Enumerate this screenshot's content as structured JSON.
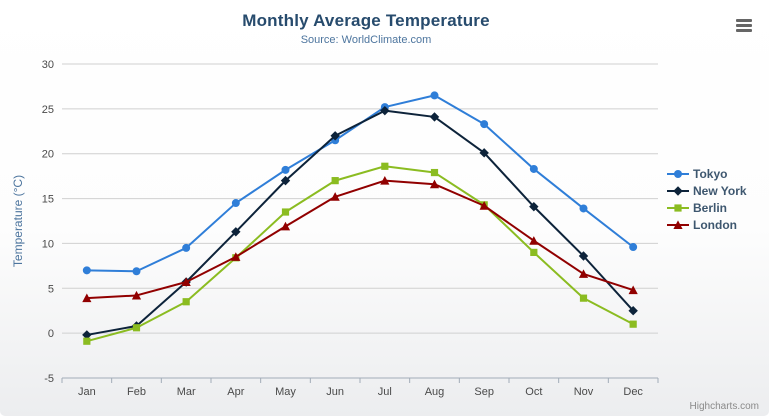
{
  "credits": "Highcharts.com",
  "chart_data": {
    "type": "line",
    "title": "Monthly Average Temperature",
    "subtitle": "Source: WorldClimate.com",
    "categories": [
      "Jan",
      "Feb",
      "Mar",
      "Apr",
      "May",
      "Jun",
      "Jul",
      "Aug",
      "Sep",
      "Oct",
      "Nov",
      "Dec"
    ],
    "series": [
      {
        "name": "Tokyo",
        "color": "#2f7ed8",
        "marker": "circle",
        "values": [
          7.0,
          6.9,
          9.5,
          14.5,
          18.2,
          21.5,
          25.2,
          26.5,
          23.3,
          18.3,
          13.9,
          9.6
        ]
      },
      {
        "name": "New York",
        "color": "#0d233a",
        "marker": "diamond",
        "values": [
          -0.2,
          0.8,
          5.7,
          11.3,
          17.0,
          22.0,
          24.8,
          24.1,
          20.1,
          14.1,
          8.6,
          2.5
        ]
      },
      {
        "name": "Berlin",
        "color": "#8bbc21",
        "marker": "square",
        "values": [
          -0.9,
          0.6,
          3.5,
          8.4,
          13.5,
          17.0,
          18.6,
          17.9,
          14.3,
          9.0,
          3.9,
          1.0
        ]
      },
      {
        "name": "London",
        "color": "#910000",
        "marker": "triangle",
        "values": [
          3.9,
          4.2,
          5.7,
          8.5,
          11.9,
          15.2,
          17.0,
          16.6,
          14.2,
          10.3,
          6.6,
          4.8
        ]
      }
    ],
    "xlabel": "",
    "ylabel": "Temperature (°C)",
    "ylim": [
      -5,
      30
    ],
    "ytick_interval": 5,
    "grid": true,
    "legend_position": "right"
  }
}
